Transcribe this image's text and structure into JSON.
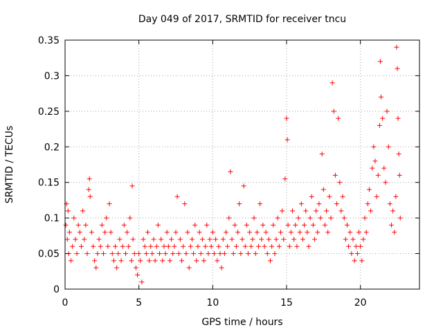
{
  "chart_data": {
    "type": "scatter",
    "title": "Day 049 of 2017, SRMTID for receiver tncu",
    "xlabel": "GPS time / hours",
    "ylabel": "SRMTID / TECUs",
    "xlim": [
      0,
      24
    ],
    "ylim": [
      0,
      0.35
    ],
    "xticks": [
      0,
      5,
      10,
      15,
      20
    ],
    "xtick_labels": [
      "0",
      "5",
      "10",
      "15",
      "20"
    ],
    "yticks": [
      0,
      0.05,
      0.1,
      0.15,
      0.2,
      0.25,
      0.3,
      0.35
    ],
    "ytick_labels": [
      "0",
      "0.05",
      "0.1",
      "0.15",
      "0.2",
      "0.25",
      "0.3",
      "0.35"
    ],
    "grid": true,
    "marker": "plus",
    "color": "#ff0000",
    "series": [
      {
        "name": "SRMTID",
        "points": [
          [
            0.05,
            0.09
          ],
          [
            0.1,
            0.12
          ],
          [
            0.15,
            0.07
          ],
          [
            0.2,
            0.11
          ],
          [
            0.25,
            0.05
          ],
          [
            0.3,
            0.08
          ],
          [
            0.4,
            0.04
          ],
          [
            0.5,
            0.06
          ],
          [
            0.6,
            0.1
          ],
          [
            0.7,
            0.07
          ],
          [
            0.8,
            0.05
          ],
          [
            0.9,
            0.09
          ],
          [
            1.0,
            0.08
          ],
          [
            1.1,
            0.06
          ],
          [
            1.2,
            0.11
          ],
          [
            1.3,
            0.07
          ],
          [
            1.4,
            0.09
          ],
          [
            1.5,
            0.05
          ],
          [
            1.6,
            0.14
          ],
          [
            1.65,
            0.155
          ],
          [
            1.7,
            0.13
          ],
          [
            1.8,
            0.08
          ],
          [
            1.9,
            0.06
          ],
          [
            2.0,
            0.04
          ],
          [
            2.1,
            0.03
          ],
          [
            2.2,
            0.05
          ],
          [
            2.3,
            0.07
          ],
          [
            2.4,
            0.06
          ],
          [
            2.5,
            0.09
          ],
          [
            2.6,
            0.05
          ],
          [
            2.7,
            0.08
          ],
          [
            2.8,
            0.1
          ],
          [
            2.9,
            0.06
          ],
          [
            3.0,
            0.12
          ],
          [
            3.1,
            0.08
          ],
          [
            3.2,
            0.05
          ],
          [
            3.3,
            0.04
          ],
          [
            3.4,
            0.06
          ],
          [
            3.5,
            0.03
          ],
          [
            3.6,
            0.05
          ],
          [
            3.7,
            0.07
          ],
          [
            3.8,
            0.04
          ],
          [
            3.9,
            0.06
          ],
          [
            4.0,
            0.09
          ],
          [
            4.1,
            0.05
          ],
          [
            4.2,
            0.08
          ],
          [
            4.3,
            0.06
          ],
          [
            4.4,
            0.1
          ],
          [
            4.5,
            0.04
          ],
          [
            4.55,
            0.145
          ],
          [
            4.6,
            0.07
          ],
          [
            4.7,
            0.05
          ],
          [
            4.8,
            0.03
          ],
          [
            4.9,
            0.02
          ],
          [
            5.0,
            0.05
          ],
          [
            5.1,
            0.04
          ],
          [
            5.2,
            0.01
          ],
          [
            5.3,
            0.07
          ],
          [
            5.4,
            0.06
          ],
          [
            5.5,
            0.05
          ],
          [
            5.6,
            0.08
          ],
          [
            5.7,
            0.04
          ],
          [
            5.8,
            0.06
          ],
          [
            5.9,
            0.05
          ],
          [
            6.0,
            0.07
          ],
          [
            6.1,
            0.04
          ],
          [
            6.2,
            0.06
          ],
          [
            6.3,
            0.09
          ],
          [
            6.4,
            0.05
          ],
          [
            6.5,
            0.07
          ],
          [
            6.6,
            0.04
          ],
          [
            6.7,
            0.06
          ],
          [
            6.8,
            0.05
          ],
          [
            6.9,
            0.08
          ],
          [
            7.0,
            0.06
          ],
          [
            7.1,
            0.04
          ],
          [
            7.2,
            0.07
          ],
          [
            7.3,
            0.05
          ],
          [
            7.4,
            0.06
          ],
          [
            7.5,
            0.08
          ],
          [
            7.6,
            0.13
          ],
          [
            7.7,
            0.05
          ],
          [
            7.8,
            0.07
          ],
          [
            7.9,
            0.04
          ],
          [
            8.0,
            0.06
          ],
          [
            8.1,
            0.12
          ],
          [
            8.2,
            0.05
          ],
          [
            8.3,
            0.08
          ],
          [
            8.4,
            0.03
          ],
          [
            8.5,
            0.06
          ],
          [
            8.6,
            0.07
          ],
          [
            8.7,
            0.05
          ],
          [
            8.8,
            0.09
          ],
          [
            8.9,
            0.04
          ],
          [
            9.0,
            0.06
          ],
          [
            9.1,
            0.08
          ],
          [
            9.2,
            0.05
          ],
          [
            9.3,
            0.07
          ],
          [
            9.4,
            0.04
          ],
          [
            9.5,
            0.06
          ],
          [
            9.6,
            0.09
          ],
          [
            9.7,
            0.05
          ],
          [
            9.8,
            0.07
          ],
          [
            9.9,
            0.06
          ],
          [
            10.0,
            0.08
          ],
          [
            10.1,
            0.05
          ],
          [
            10.2,
            0.07
          ],
          [
            10.3,
            0.04
          ],
          [
            10.4,
            0.06
          ],
          [
            10.5,
            0.05
          ],
          [
            10.6,
            0.03
          ],
          [
            10.7,
            0.07
          ],
          [
            10.8,
            0.05
          ],
          [
            10.9,
            0.08
          ],
          [
            11.0,
            0.06
          ],
          [
            11.1,
            0.1
          ],
          [
            11.2,
            0.165
          ],
          [
            11.3,
            0.07
          ],
          [
            11.4,
            0.05
          ],
          [
            11.5,
            0.09
          ],
          [
            11.6,
            0.06
          ],
          [
            11.7,
            0.08
          ],
          [
            11.8,
            0.12
          ],
          [
            11.9,
            0.05
          ],
          [
            12.0,
            0.07
          ],
          [
            12.1,
            0.145
          ],
          [
            12.2,
            0.06
          ],
          [
            12.3,
            0.09
          ],
          [
            12.4,
            0.05
          ],
          [
            12.5,
            0.08
          ],
          [
            12.6,
            0.06
          ],
          [
            12.7,
            0.07
          ],
          [
            12.8,
            0.1
          ],
          [
            12.9,
            0.05
          ],
          [
            13.0,
            0.08
          ],
          [
            13.1,
            0.06
          ],
          [
            13.2,
            0.12
          ],
          [
            13.3,
            0.07
          ],
          [
            13.4,
            0.09
          ],
          [
            13.5,
            0.06
          ],
          [
            13.6,
            0.08
          ],
          [
            13.7,
            0.05
          ],
          [
            13.8,
            0.07
          ],
          [
            13.9,
            0.04
          ],
          [
            14.0,
            0.06
          ],
          [
            14.1,
            0.09
          ],
          [
            14.2,
            0.05
          ],
          [
            14.3,
            0.07
          ],
          [
            14.4,
            0.1
          ],
          [
            14.5,
            0.06
          ],
          [
            14.6,
            0.08
          ],
          [
            14.7,
            0.11
          ],
          [
            14.8,
            0.07
          ],
          [
            14.9,
            0.155
          ],
          [
            15.0,
            0.24
          ],
          [
            15.05,
            0.21
          ],
          [
            15.1,
            0.09
          ],
          [
            15.2,
            0.06
          ],
          [
            15.3,
            0.08
          ],
          [
            15.4,
            0.11
          ],
          [
            15.5,
            0.07
          ],
          [
            15.6,
            0.09
          ],
          [
            15.7,
            0.06
          ],
          [
            15.8,
            0.1
          ],
          [
            15.9,
            0.08
          ],
          [
            16.0,
            0.12
          ],
          [
            16.1,
            0.07
          ],
          [
            16.2,
            0.09
          ],
          [
            16.3,
            0.11
          ],
          [
            16.4,
            0.08
          ],
          [
            16.5,
            0.06
          ],
          [
            16.6,
            0.1
          ],
          [
            16.7,
            0.13
          ],
          [
            16.8,
            0.09
          ],
          [
            16.9,
            0.07
          ],
          [
            17.0,
            0.11
          ],
          [
            17.1,
            0.08
          ],
          [
            17.2,
            0.12
          ],
          [
            17.3,
            0.1
          ],
          [
            17.4,
            0.19
          ],
          [
            17.5,
            0.14
          ],
          [
            17.6,
            0.09
          ],
          [
            17.7,
            0.11
          ],
          [
            17.8,
            0.08
          ],
          [
            17.9,
            0.13
          ],
          [
            18.0,
            0.1
          ],
          [
            18.1,
            0.29
          ],
          [
            18.2,
            0.25
          ],
          [
            18.3,
            0.16
          ],
          [
            18.4,
            0.12
          ],
          [
            18.5,
            0.24
          ],
          [
            18.6,
            0.15
          ],
          [
            18.7,
            0.11
          ],
          [
            18.8,
            0.13
          ],
          [
            18.9,
            0.1
          ],
          [
            19.0,
            0.07
          ],
          [
            19.1,
            0.09
          ],
          [
            19.2,
            0.06
          ],
          [
            19.3,
            0.08
          ],
          [
            19.4,
            0.05
          ],
          [
            19.5,
            0.07
          ],
          [
            19.6,
            0.04
          ],
          [
            19.7,
            0.06
          ],
          [
            19.8,
            0.05
          ],
          [
            19.9,
            0.08
          ],
          [
            20.0,
            0.06
          ],
          [
            20.1,
            0.04
          ],
          [
            20.2,
            0.07
          ],
          [
            20.3,
            0.1
          ],
          [
            20.4,
            0.08
          ],
          [
            20.5,
            0.12
          ],
          [
            20.6,
            0.14
          ],
          [
            20.7,
            0.11
          ],
          [
            20.8,
            0.17
          ],
          [
            20.9,
            0.2
          ],
          [
            21.0,
            0.18
          ],
          [
            21.1,
            0.13
          ],
          [
            21.2,
            0.16
          ],
          [
            21.3,
            0.23
          ],
          [
            21.35,
            0.32
          ],
          [
            21.4,
            0.27
          ],
          [
            21.5,
            0.24
          ],
          [
            21.6,
            0.17
          ],
          [
            21.7,
            0.15
          ],
          [
            21.8,
            0.25
          ],
          [
            21.9,
            0.2
          ],
          [
            22.0,
            0.12
          ],
          [
            22.1,
            0.09
          ],
          [
            22.2,
            0.11
          ],
          [
            22.3,
            0.08
          ],
          [
            22.4,
            0.13
          ],
          [
            22.45,
            0.34
          ],
          [
            22.5,
            0.31
          ],
          [
            22.55,
            0.24
          ],
          [
            22.6,
            0.19
          ],
          [
            22.65,
            0.16
          ],
          [
            22.7,
            0.1
          ]
        ]
      }
    ]
  }
}
